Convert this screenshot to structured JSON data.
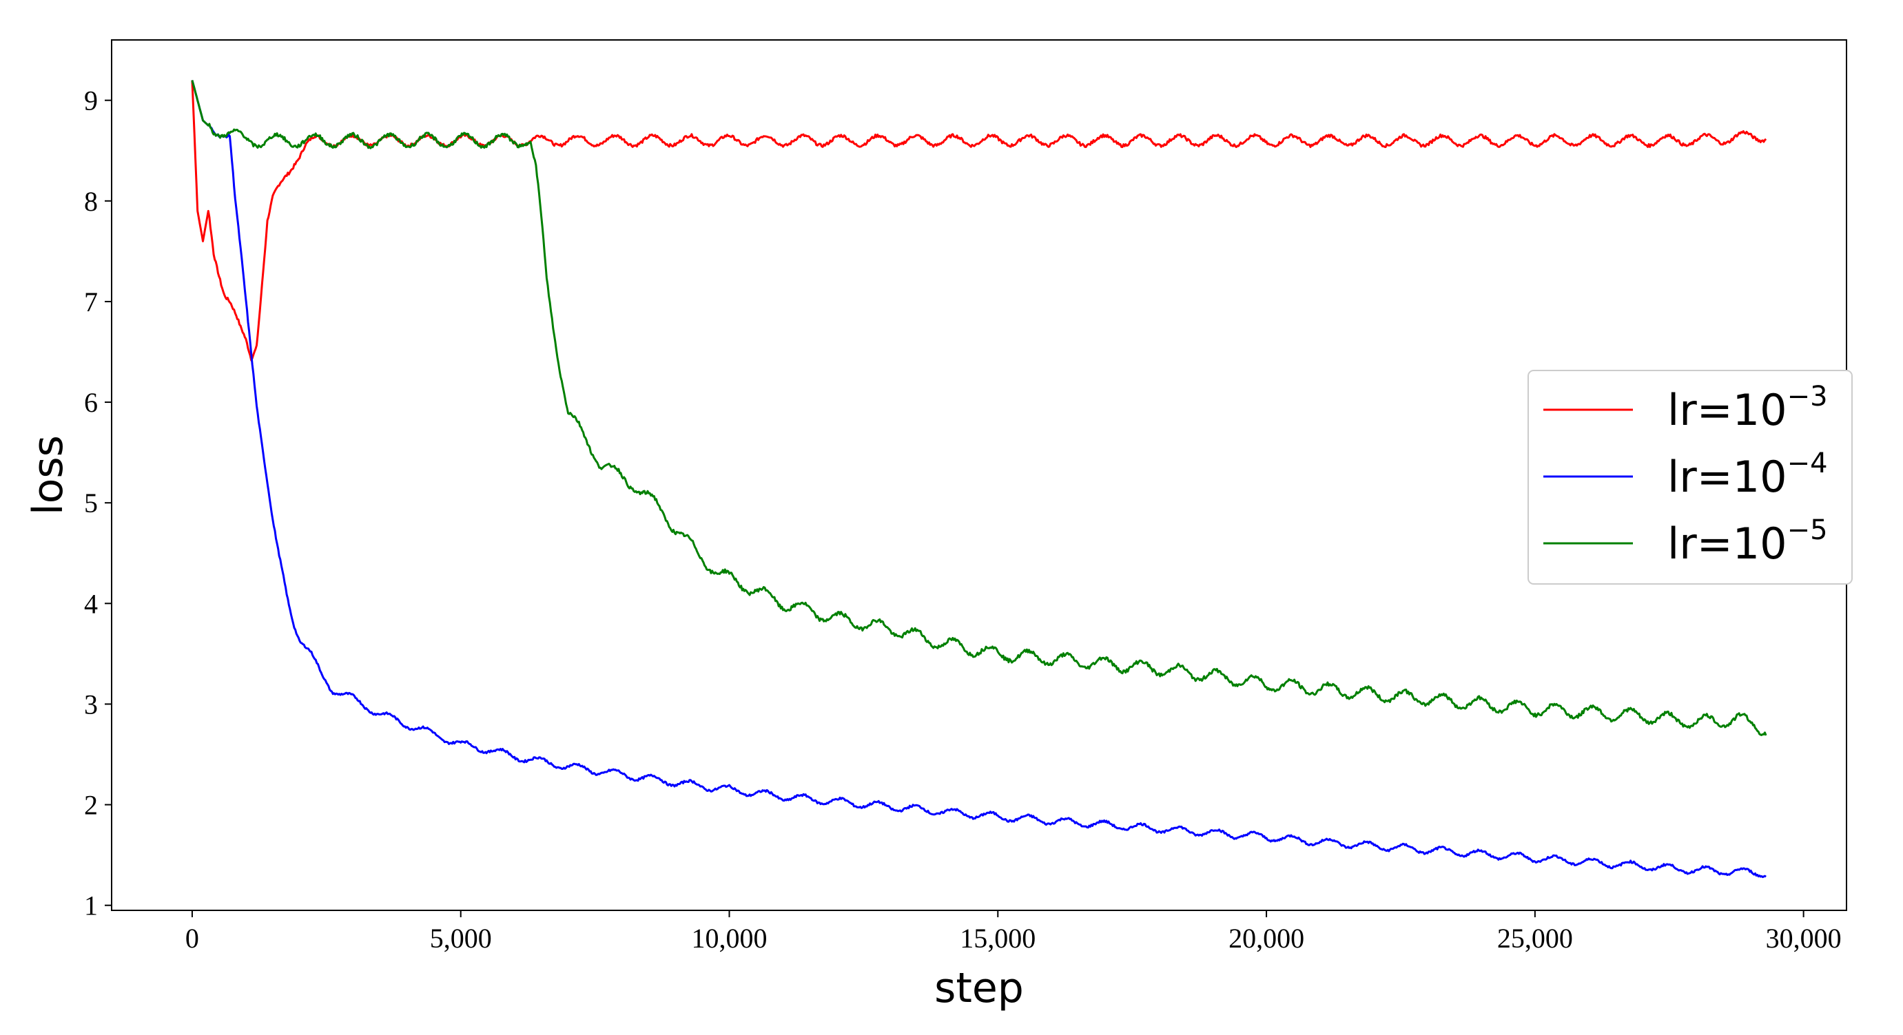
{
  "chart_data": {
    "type": "line",
    "xlabel": "step",
    "ylabel": "loss",
    "xlim": [
      -1500,
      30800
    ],
    "ylim": [
      0.95,
      9.6
    ],
    "xticks": [
      0,
      5000,
      10000,
      15000,
      20000,
      25000,
      30000
    ],
    "xtick_labels": [
      "0",
      "5,000",
      "10,000",
      "15,000",
      "20,000",
      "25,000",
      "30,000"
    ],
    "yticks": [
      1,
      2,
      3,
      4,
      5,
      6,
      7,
      8,
      9
    ],
    "ytick_labels": [
      "1",
      "2",
      "3",
      "4",
      "5",
      "6",
      "7",
      "8",
      "9"
    ],
    "grid": false,
    "legend_position": "center-right",
    "series": [
      {
        "name": "lr=10^-3",
        "label_base": "lr=10",
        "label_exp": "−3",
        "color": "#ff0000",
        "x": [
          0,
          100,
          200,
          300,
          400,
          500,
          600,
          700,
          800,
          900,
          1000,
          1100,
          1200,
          1300,
          1400,
          1500,
          1700,
          1900,
          2100,
          2300,
          2600,
          3000,
          3500,
          4000,
          5000,
          6000,
          7000,
          8000,
          9000,
          10000,
          12000,
          14000,
          16000,
          18000,
          20000,
          22000,
          24000,
          26000,
          28000,
          29300
        ],
        "y": [
          9.2,
          7.9,
          7.6,
          7.9,
          7.5,
          7.3,
          7.1,
          7.0,
          6.85,
          6.7,
          6.6,
          6.45,
          6.6,
          7.2,
          7.8,
          8.0,
          8.2,
          8.4,
          8.55,
          8.6,
          8.6,
          8.6,
          8.6,
          8.6,
          8.6,
          8.6,
          8.6,
          8.6,
          8.6,
          8.6,
          8.6,
          8.6,
          8.6,
          8.6,
          8.6,
          8.6,
          8.6,
          8.6,
          8.6,
          8.65
        ]
      },
      {
        "name": "lr=10^-4",
        "label_base": "lr=10",
        "label_exp": "−4",
        "color": "#0000ff",
        "x": [
          0,
          200,
          400,
          700,
          800,
          900,
          1000,
          1100,
          1200,
          1300,
          1400,
          1500,
          1600,
          1700,
          1800,
          1900,
          2000,
          2200,
          2400,
          2600,
          3000,
          3500,
          4000,
          4500,
          5000,
          5500,
          6000,
          7000,
          8000,
          9000,
          10000,
          11000,
          12000,
          13000,
          14000,
          15000,
          16000,
          17000,
          18000,
          19000,
          20000,
          21000,
          22000,
          23000,
          24000,
          25000,
          26000,
          27000,
          28000,
          29300
        ],
        "y": [
          9.2,
          8.8,
          8.7,
          8.65,
          8.0,
          7.5,
          7.0,
          6.5,
          6.0,
          5.6,
          5.2,
          4.8,
          4.5,
          4.25,
          4.0,
          3.8,
          3.65,
          3.5,
          3.3,
          3.15,
          3.05,
          2.9,
          2.8,
          2.7,
          2.6,
          2.55,
          2.48,
          2.38,
          2.3,
          2.22,
          2.15,
          2.08,
          2.03,
          1.98,
          1.93,
          1.88,
          1.84,
          1.8,
          1.76,
          1.72,
          1.68,
          1.63,
          1.59,
          1.55,
          1.51,
          1.47,
          1.43,
          1.39,
          1.35,
          1.32
        ]
      },
      {
        "name": "lr=10^-5",
        "label_base": "lr=10",
        "label_exp": "−5",
        "color": "#008000",
        "x": [
          0,
          200,
          400,
          600,
          800,
          1000,
          1500,
          2000,
          3000,
          4000,
          5000,
          6000,
          6300,
          6400,
          6500,
          6600,
          6800,
          7000,
          7300,
          7600,
          8000,
          8300,
          8600,
          9000,
          9400,
          9800,
          10200,
          10600,
          11000,
          12000,
          13000,
          14000,
          15000,
          16000,
          17000,
          18000,
          19000,
          20000,
          21000,
          22000,
          23000,
          24000,
          25000,
          26000,
          27000,
          28000,
          28800,
          29300
        ],
        "y": [
          9.2,
          8.8,
          8.7,
          8.7,
          8.65,
          8.6,
          8.6,
          8.6,
          8.6,
          8.6,
          8.6,
          8.6,
          8.6,
          8.3,
          7.8,
          7.2,
          6.5,
          5.9,
          5.65,
          5.4,
          5.25,
          5.15,
          5.0,
          4.75,
          4.5,
          4.3,
          4.2,
          4.1,
          4.0,
          3.85,
          3.75,
          3.6,
          3.5,
          3.45,
          3.4,
          3.35,
          3.28,
          3.2,
          3.15,
          3.1,
          3.05,
          3.0,
          2.95,
          2.92,
          2.88,
          2.82,
          2.85,
          2.75
        ]
      }
    ]
  }
}
